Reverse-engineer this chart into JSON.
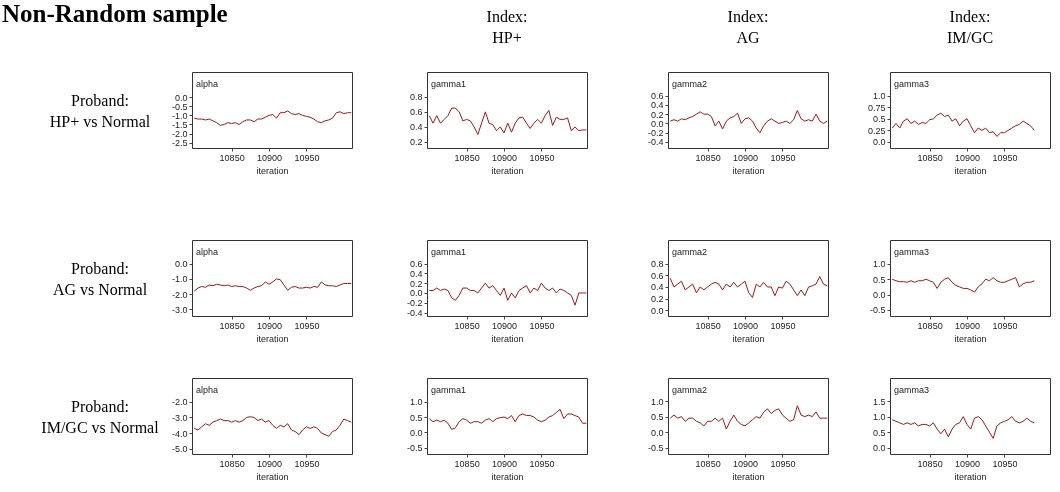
{
  "chart_data": [
    {
      "type": "other",
      "title": "Non-Random sample",
      "annotations": [
        "Index:\nHP+",
        "Index:\nAG",
        "Index:\nIM/GC",
        "Proband:\nHP+ vs Normal",
        "Proband:\nAG vs Normal",
        "Proband:\nIM/GC vs Normal"
      ]
    },
    {
      "type": "line",
      "title": "alpha",
      "xlabel": "iteration",
      "xlim": [
        10797,
        11011
      ],
      "xticks": [
        10850,
        10900,
        10950
      ],
      "ylim": [
        -2.8,
        1.4
      ],
      "yticks": [
        {
          "value": 0,
          "label": "0.0"
        },
        -0.5,
        {
          "value": -1,
          "label": "-1.0"
        },
        -1.5,
        {
          "value": -2,
          "label": "-2.0"
        },
        -2.5
      ],
      "x": [
        10800,
        10805,
        10810,
        10815,
        10820,
        10825,
        10830,
        10835,
        10840,
        10845,
        10850,
        10855,
        10860,
        10865,
        10870,
        10875,
        10880,
        10885,
        10890,
        10895,
        10900,
        10905,
        10910,
        10915,
        10920,
        10925,
        10930,
        10935,
        10940,
        10945,
        10950,
        10955,
        10960,
        10965,
        10970,
        10975,
        10980,
        10985,
        10990,
        10995,
        11000,
        11005,
        11010
      ],
      "series": [
        {
          "color": "#a01818",
          "values": [
            -1.15,
            -1.2,
            -1.2,
            -1.25,
            -1.2,
            -1.3,
            -1.4,
            -1.55,
            -1.5,
            -1.4,
            -1.45,
            -1.4,
            -1.5,
            -1.35,
            -1.25,
            -1.25,
            -1.35,
            -1.2,
            -1.2,
            -1.1,
            -1.0,
            -0.95,
            -1.15,
            -0.85,
            -0.85,
            -0.75,
            -0.9,
            -0.95,
            -0.9,
            -1.0,
            -1.05,
            -1.1,
            -1.2,
            -1.35,
            -1.4,
            -1.3,
            -1.25,
            -1.15,
            -0.85,
            -0.8,
            -0.9,
            -0.85,
            -0.85
          ]
        }
      ]
    },
    {
      "type": "line",
      "title": "gamma1",
      "xlabel": "iteration",
      "xlim": [
        10797,
        11011
      ],
      "xticks": [
        10850,
        10900,
        10950
      ],
      "ylim": [
        0.12,
        1.13
      ],
      "yticks": [
        0.8,
        0.6,
        0.4,
        0.2
      ],
      "x": [
        10800,
        10805,
        10810,
        10815,
        10820,
        10825,
        10830,
        10835,
        10840,
        10845,
        10850,
        10855,
        10860,
        10865,
        10870,
        10875,
        10880,
        10885,
        10890,
        10895,
        10900,
        10905,
        10910,
        10915,
        10920,
        10925,
        10930,
        10935,
        10940,
        10945,
        10950,
        10955,
        10960,
        10965,
        10970,
        10975,
        10980,
        10985,
        10990,
        10995,
        11000,
        11005,
        11010
      ],
      "series": [
        {
          "color": "#a01818",
          "values": [
            0.55,
            0.45,
            0.55,
            0.45,
            0.5,
            0.55,
            0.65,
            0.65,
            0.6,
            0.48,
            0.5,
            0.48,
            0.4,
            0.3,
            0.45,
            0.6,
            0.45,
            0.43,
            0.35,
            0.4,
            0.32,
            0.45,
            0.33,
            0.45,
            0.52,
            0.53,
            0.45,
            0.38,
            0.45,
            0.5,
            0.45,
            0.55,
            0.62,
            0.42,
            0.53,
            0.5,
            0.5,
            0.52,
            0.35,
            0.4,
            0.35,
            0.36,
            0.36
          ]
        }
      ]
    },
    {
      "type": "line",
      "title": "gamma2",
      "xlabel": "iteration",
      "xlim": [
        10797,
        11011
      ],
      "xticks": [
        10850,
        10900,
        10950
      ],
      "ylim": [
        -0.53,
        1.11
      ],
      "yticks": [
        0.6,
        0.4,
        0.2,
        {
          "value": 0,
          "label": "0.0"
        },
        -0.2,
        -0.4
      ],
      "x": [
        10800,
        10805,
        10810,
        10815,
        10820,
        10825,
        10830,
        10835,
        10840,
        10845,
        10850,
        10855,
        10860,
        10865,
        10870,
        10875,
        10880,
        10885,
        10890,
        10895,
        10900,
        10905,
        10910,
        10915,
        10920,
        10925,
        10930,
        10935,
        10940,
        10945,
        10950,
        10955,
        10960,
        10965,
        10970,
        10975,
        10980,
        10985,
        10990,
        10995,
        11000,
        11005,
        11010
      ],
      "series": [
        {
          "color": "#a01818",
          "values": [
            0.05,
            0.08,
            0.05,
            0.1,
            0.08,
            0.12,
            0.15,
            0.2,
            0.25,
            0.2,
            0.2,
            0.15,
            -0.05,
            0.05,
            -0.12,
            0.05,
            0.12,
            0.15,
            0.22,
            0.0,
            0.1,
            0.12,
            0.05,
            -0.1,
            -0.2,
            -0.05,
            0.05,
            0.1,
            0.05,
            0.0,
            0.02,
            0.05,
            0.0,
            0.08,
            0.28,
            0.1,
            0.05,
            0.08,
            0.05,
            0.2,
            0.05,
            0.0,
            0.05
          ]
        }
      ]
    },
    {
      "type": "line",
      "title": "gamma3",
      "xlabel": "iteration",
      "xlim": [
        10797,
        11011
      ],
      "xticks": [
        10850,
        10900,
        10950
      ],
      "ylim": [
        -0.13,
        1.51
      ],
      "yticks": [
        {
          "value": 1,
          "label": "1.0"
        },
        0.75,
        0.5,
        0.25,
        {
          "value": 0,
          "label": "0.0"
        }
      ],
      "x": [
        10800,
        10805,
        10810,
        10815,
        10820,
        10825,
        10830,
        10835,
        10840,
        10845,
        10850,
        10855,
        10860,
        10865,
        10870,
        10875,
        10880,
        10885,
        10890,
        10895,
        10900,
        10905,
        10910,
        10915,
        10920,
        10925,
        10930,
        10935,
        10940,
        10945,
        10950,
        10955,
        10960,
        10965,
        10970,
        10975,
        10980,
        10985,
        10990
      ],
      "series": [
        {
          "color": "#a01818",
          "values": [
            0.3,
            0.4,
            0.3,
            0.45,
            0.5,
            0.4,
            0.45,
            0.38,
            0.42,
            0.4,
            0.48,
            0.5,
            0.58,
            0.62,
            0.55,
            0.58,
            0.45,
            0.5,
            0.35,
            0.45,
            0.5,
            0.35,
            0.2,
            0.3,
            0.25,
            0.3,
            0.2,
            0.22,
            0.12,
            0.2,
            0.2,
            0.25,
            0.3,
            0.35,
            0.38,
            0.45,
            0.4,
            0.35,
            0.25
          ]
        }
      ]
    },
    {
      "type": "line",
      "title": "alpha",
      "xlabel": "iteration",
      "xlim": [
        10797,
        11011
      ],
      "xticks": [
        10850,
        10900,
        10950
      ],
      "ylim": [
        -3.44,
        1.56
      ],
      "yticks": [
        {
          "value": 0,
          "label": "0.0"
        },
        {
          "value": -1,
          "label": "-1.0"
        },
        {
          "value": -2,
          "label": "-2.0"
        },
        {
          "value": -3,
          "label": "-3.0"
        }
      ],
      "x": [
        10800,
        10805,
        10810,
        10815,
        10820,
        10825,
        10830,
        10835,
        10840,
        10845,
        10850,
        10855,
        10860,
        10865,
        10870,
        10875,
        10880,
        10885,
        10890,
        10895,
        10900,
        10905,
        10910,
        10915,
        10920,
        10925,
        10930,
        10935,
        10940,
        10945,
        10950,
        10955,
        10960,
        10965,
        10970,
        10975,
        10980,
        10985,
        10990,
        10995,
        11000,
        11005,
        11010
      ],
      "series": [
        {
          "color": "#a01818",
          "values": [
            -1.8,
            -1.6,
            -1.5,
            -1.55,
            -1.4,
            -1.45,
            -1.35,
            -1.4,
            -1.45,
            -1.4,
            -1.5,
            -1.45,
            -1.5,
            -1.5,
            -1.6,
            -1.75,
            -1.6,
            -1.5,
            -1.45,
            -1.2,
            -1.35,
            -1.2,
            -1.0,
            -1.05,
            -1.4,
            -1.75,
            -1.55,
            -1.5,
            -1.6,
            -1.6,
            -1.55,
            -1.6,
            -1.5,
            -1.55,
            -1.2,
            -1.4,
            -1.45,
            -1.45,
            -1.5,
            -1.4,
            -1.3,
            -1.3,
            -1.3
          ]
        }
      ]
    },
    {
      "type": "line",
      "title": "gamma1",
      "xlabel": "iteration",
      "xlim": [
        10797,
        11011
      ],
      "xticks": [
        10850,
        10900,
        10950
      ],
      "ylim": [
        -0.47,
        1.08
      ],
      "yticks": [
        0.6,
        0.4,
        0.2,
        {
          "value": 0,
          "label": "0.0"
        },
        -0.2,
        -0.4
      ],
      "x": [
        10800,
        10805,
        10810,
        10815,
        10820,
        10825,
        10830,
        10835,
        10840,
        10845,
        10850,
        10855,
        10860,
        10865,
        10870,
        10875,
        10880,
        10885,
        10890,
        10895,
        10900,
        10905,
        10910,
        10915,
        10920,
        10925,
        10930,
        10935,
        10940,
        10945,
        10950,
        10955,
        10960,
        10965,
        10970,
        10975,
        10980,
        10985,
        10990,
        10995,
        11000,
        11005,
        11010
      ],
      "series": [
        {
          "color": "#a01818",
          "values": [
            0.05,
            0.05,
            0.1,
            0.05,
            0.08,
            0.05,
            -0.1,
            -0.15,
            -0.05,
            0.1,
            0.1,
            0.05,
            0.05,
            0.0,
            0.1,
            0.2,
            0.1,
            0.15,
            0.05,
            -0.05,
            0.1,
            -0.15,
            0.0,
            -0.1,
            0.05,
            0.1,
            0.15,
            0.0,
            0.1,
            0.05,
            0.2,
            0.1,
            0.05,
            0.1,
            0.0,
            0.08,
            0.05,
            0.0,
            -0.05,
            -0.25,
            0.0,
            0.0,
            0.0
          ]
        }
      ]
    },
    {
      "type": "line",
      "title": "gamma2",
      "xlabel": "iteration",
      "xlim": [
        10797,
        11011
      ],
      "xticks": [
        10850,
        10900,
        10950
      ],
      "ylim": [
        -0.1,
        1.21
      ],
      "yticks": [
        0.8,
        0.6,
        0.4,
        0.2,
        {
          "value": 0,
          "label": "0.0"
        }
      ],
      "x": [
        10800,
        10805,
        10810,
        10815,
        10820,
        10825,
        10830,
        10835,
        10840,
        10845,
        10850,
        10855,
        10860,
        10865,
        10870,
        10875,
        10880,
        10885,
        10890,
        10895,
        10900,
        10905,
        10910,
        10915,
        10920,
        10925,
        10930,
        10935,
        10940,
        10945,
        10950,
        10955,
        10960,
        10965,
        10970,
        10975,
        10980,
        10985,
        10990,
        10995,
        11000,
        11005,
        11010
      ],
      "series": [
        {
          "color": "#a01818",
          "values": [
            0.55,
            0.4,
            0.45,
            0.5,
            0.35,
            0.4,
            0.45,
            0.3,
            0.4,
            0.35,
            0.4,
            0.45,
            0.48,
            0.45,
            0.35,
            0.45,
            0.4,
            0.48,
            0.4,
            0.45,
            0.5,
            0.3,
            0.22,
            0.45,
            0.4,
            0.48,
            0.4,
            0.4,
            0.25,
            0.4,
            0.38,
            0.5,
            0.45,
            0.35,
            0.25,
            0.35,
            0.25,
            0.4,
            0.42,
            0.45,
            0.58,
            0.45,
            0.42
          ]
        }
      ]
    },
    {
      "type": "line",
      "title": "gamma3",
      "xlabel": "iteration",
      "xlim": [
        10797,
        11011
      ],
      "xticks": [
        10850,
        10900,
        10950
      ],
      "ylim": [
        -0.7,
        1.78
      ],
      "yticks": [
        {
          "value": 1,
          "label": "1.0"
        },
        0.5,
        {
          "value": 0,
          "label": "0.0"
        },
        -0.5
      ],
      "x": [
        10800,
        10805,
        10810,
        10815,
        10820,
        10825,
        10830,
        10835,
        10840,
        10845,
        10850,
        10855,
        10860,
        10865,
        10870,
        10875,
        10880,
        10885,
        10890,
        10895,
        10900,
        10905,
        10910,
        10915,
        10920,
        10925,
        10930,
        10935,
        10940,
        10945,
        10950,
        10955,
        10960,
        10965,
        10970,
        10975,
        10980,
        10985,
        10990
      ],
      "series": [
        {
          "color": "#a01818",
          "values": [
            0.5,
            0.45,
            0.42,
            0.42,
            0.4,
            0.45,
            0.4,
            0.45,
            0.45,
            0.5,
            0.45,
            0.4,
            0.2,
            0.4,
            0.5,
            0.55,
            0.4,
            0.3,
            0.25,
            0.2,
            0.2,
            0.15,
            0.08,
            0.25,
            0.35,
            0.5,
            0.45,
            0.55,
            0.45,
            0.4,
            0.4,
            0.45,
            0.5,
            0.55,
            0.25,
            0.35,
            0.4,
            0.4,
            0.45
          ]
        }
      ]
    },
    {
      "type": "line",
      "title": "alpha",
      "xlabel": "iteration",
      "xlim": [
        10797,
        11011
      ],
      "xticks": [
        10850,
        10900,
        10950
      ],
      "ylim": [
        -5.34,
        -0.47
      ],
      "yticks": [
        {
          "value": -2,
          "label": "-2.0"
        },
        {
          "value": -3,
          "label": "-3.0"
        },
        {
          "value": -4,
          "label": "-4.0"
        },
        {
          "value": -5,
          "label": "-5.0"
        }
      ],
      "x": [
        10800,
        10805,
        10810,
        10815,
        10820,
        10825,
        10830,
        10835,
        10840,
        10845,
        10850,
        10855,
        10860,
        10865,
        10870,
        10875,
        10880,
        10885,
        10890,
        10895,
        10900,
        10905,
        10910,
        10915,
        10920,
        10925,
        10930,
        10935,
        10940,
        10945,
        10950,
        10955,
        10960,
        10965,
        10970,
        10975,
        10980,
        10985,
        10990,
        10995,
        11000,
        11005,
        11010
      ],
      "series": [
        {
          "color": "#a01818",
          "values": [
            -3.7,
            -3.8,
            -3.6,
            -3.4,
            -3.5,
            -3.3,
            -3.2,
            -3.1,
            -3.2,
            -3.2,
            -3.3,
            -3.2,
            -3.3,
            -3.2,
            -3.0,
            -2.95,
            -3.0,
            -3.2,
            -3.1,
            -3.3,
            -3.2,
            -3.5,
            -3.7,
            -3.5,
            -3.6,
            -3.4,
            -3.8,
            -3.9,
            -4.1,
            -3.8,
            -3.6,
            -3.7,
            -3.6,
            -3.7,
            -4.0,
            -4.1,
            -4.2,
            -3.9,
            -3.8,
            -3.5,
            -3.1,
            -3.2,
            -3.3
          ]
        }
      ]
    },
    {
      "type": "line",
      "title": "gamma1",
      "xlabel": "iteration",
      "xlim": [
        10797,
        11011
      ],
      "xticks": [
        10850,
        10900,
        10950
      ],
      "ylim": [
        -0.7,
        1.77
      ],
      "yticks": [
        {
          "value": 1,
          "label": "1.0"
        },
        0.5,
        {
          "value": 0,
          "label": "0.0"
        },
        -0.5
      ],
      "x": [
        10800,
        10805,
        10810,
        10815,
        10820,
        10825,
        10830,
        10835,
        10840,
        10845,
        10850,
        10855,
        10860,
        10865,
        10870,
        10875,
        10880,
        10885,
        10890,
        10895,
        10900,
        10905,
        10910,
        10915,
        10920,
        10925,
        10930,
        10935,
        10940,
        10945,
        10950,
        10955,
        10960,
        10965,
        10970,
        10975,
        10980,
        10985,
        10990,
        10995,
        11000,
        11005,
        11010
      ],
      "series": [
        {
          "color": "#a01818",
          "values": [
            0.45,
            0.35,
            0.4,
            0.35,
            0.4,
            0.3,
            0.1,
            0.15,
            0.35,
            0.45,
            0.4,
            0.3,
            0.35,
            0.35,
            0.3,
            0.4,
            0.45,
            0.35,
            0.45,
            0.48,
            0.5,
            0.45,
            0.55,
            0.35,
            0.55,
            0.6,
            0.55,
            0.55,
            0.5,
            0.4,
            0.35,
            0.4,
            0.5,
            0.55,
            0.65,
            0.75,
            0.45,
            0.6,
            0.6,
            0.55,
            0.5,
            0.3,
            0.3
          ]
        }
      ]
    },
    {
      "type": "line",
      "title": "gamma2",
      "xlabel": "iteration",
      "xlim": [
        10797,
        11011
      ],
      "xticks": [
        10850,
        10900,
        10950
      ],
      "ylim": [
        -0.7,
        1.74
      ],
      "yticks": [
        {
          "value": 1,
          "label": "1.0"
        },
        0.5,
        {
          "value": 0,
          "label": "0.0"
        },
        -0.5
      ],
      "x": [
        10800,
        10805,
        10810,
        10815,
        10820,
        10825,
        10830,
        10835,
        10840,
        10845,
        10850,
        10855,
        10860,
        10865,
        10870,
        10875,
        10880,
        10885,
        10890,
        10895,
        10900,
        10905,
        10910,
        10915,
        10920,
        10925,
        10930,
        10935,
        10940,
        10945,
        10950,
        10955,
        10960,
        10965,
        10970,
        10975,
        10980,
        10985,
        10990,
        10995,
        11000,
        11005,
        11010
      ],
      "series": [
        {
          "color": "#a01818",
          "values": [
            0.45,
            0.55,
            0.45,
            0.5,
            0.35,
            0.45,
            0.45,
            0.35,
            0.3,
            0.2,
            0.35,
            0.35,
            0.45,
            0.35,
            0.45,
            0.1,
            0.35,
            0.55,
            0.35,
            0.25,
            0.2,
            0.3,
            0.4,
            0.5,
            0.45,
            0.65,
            0.75,
            0.6,
            0.7,
            0.75,
            0.55,
            0.45,
            0.35,
            0.4,
            0.85,
            0.55,
            0.5,
            0.55,
            0.5,
            0.65,
            0.45,
            0.45,
            0.45
          ]
        }
      ]
    },
    {
      "type": "line",
      "title": "gamma3",
      "xlabel": "iteration",
      "xlim": [
        10797,
        11011
      ],
      "xticks": [
        10850,
        10900,
        10950
      ],
      "ylim": [
        -0.2,
        2.24
      ],
      "yticks": [
        1.5,
        {
          "value": 1,
          "label": "1.0"
        },
        0.5,
        {
          "value": 0,
          "label": "0.0"
        }
      ],
      "x": [
        10800,
        10805,
        10810,
        10815,
        10820,
        10825,
        10830,
        10835,
        10840,
        10845,
        10850,
        10855,
        10860,
        10865,
        10870,
        10875,
        10880,
        10885,
        10890,
        10895,
        10900,
        10905,
        10910,
        10915,
        10920,
        10925,
        10930,
        10935,
        10940,
        10945,
        10950,
        10955,
        10960,
        10965,
        10970,
        10975,
        10980,
        10985,
        10990
      ],
      "series": [
        {
          "color": "#a01818",
          "values": [
            0.9,
            0.85,
            0.8,
            0.75,
            0.8,
            0.75,
            0.8,
            0.7,
            0.75,
            0.75,
            0.7,
            0.8,
            0.6,
            0.45,
            0.6,
            0.35,
            0.6,
            0.75,
            0.8,
            1.0,
            0.75,
            0.6,
            0.95,
            1.0,
            0.9,
            0.7,
            0.5,
            0.3,
            0.7,
            0.8,
            0.85,
            0.9,
            1.0,
            0.85,
            0.8,
            0.85,
            0.95,
            0.85,
            0.8
          ]
        }
      ]
    }
  ]
}
